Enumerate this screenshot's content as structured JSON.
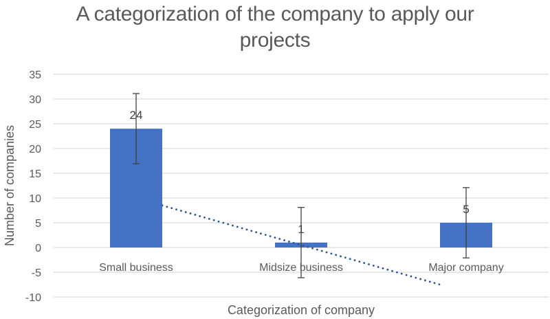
{
  "chart_data": {
    "type": "bar",
    "title": "A categorization of the company to apply our projects",
    "title_lines": [
      "A categorization of the company to apply our",
      "projects"
    ],
    "xlabel": "Categorization of company",
    "ylabel": "Number of companies",
    "categories": [
      "Small business",
      "Midsize business",
      "Major company"
    ],
    "values": [
      24,
      1,
      5
    ],
    "data_labels": [
      "24",
      "1",
      "5"
    ],
    "error_bars": {
      "type": "symmetric",
      "plus_minus": 7.1
    },
    "trendline": {
      "type": "linear",
      "style": "dotted",
      "slope": -9.5,
      "intercept": 19.5
    },
    "ylim": [
      -10,
      35
    ],
    "yticks": [
      35,
      30,
      25,
      20,
      15,
      10,
      5,
      0,
      -5,
      -10
    ],
    "ytick_labels": [
      "35",
      "30",
      "25",
      "20",
      "15",
      "10",
      "5",
      "0",
      "-5",
      "-10"
    ],
    "grid": true,
    "legend": null,
    "colors": {
      "bar": "#4472C4",
      "trendline": "#2F5597",
      "gridline": "#D9D9D9",
      "errorbar": "#404040",
      "text": "#595959"
    }
  }
}
